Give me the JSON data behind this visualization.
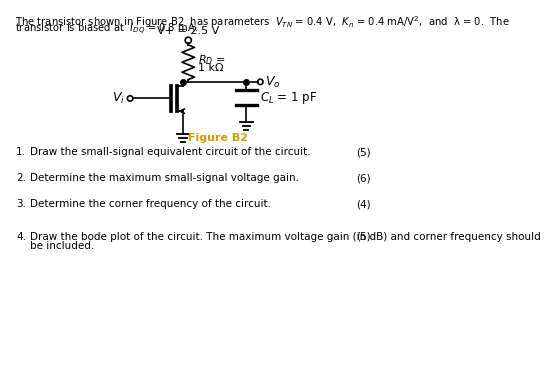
{
  "bg_color": "#ffffff",
  "text_color": "#000000",
  "line_color": "#000000",
  "fig_label": "Figure B2",
  "fig_label_color": "#c8a000",
  "vplus_label": "V+ = 2.5 V",
  "rd_label1": "$R_D$ =",
  "rd_label2": "1 kΩ",
  "vo_label": "$V_o$",
  "vi_label": "$V_i$",
  "cl_label": "$C_L$ = 1 pF",
  "header_line1": "The transistor shown in Figure B2  has parameters  $V_{TN}$ = 0.4 V,  $K_n$ = 0.4 mA/V$^2$,  and  λ = 0.  The",
  "header_line2": "transistor is biased at  $I_{DQ}$ = 0.8 mA.",
  "questions": [
    {
      "num": "1.",
      "text": "Draw the small-signal equivalent circuit of the circuit.",
      "marks": "(5)"
    },
    {
      "num": "2.",
      "text": "Determine the maximum small-signal voltage gain.",
      "marks": "(6)"
    },
    {
      "num": "3.",
      "text": "Determine the corner frequency of the circuit.",
      "marks": "(4)"
    },
    {
      "num": "4.",
      "text": "Draw the bode plot of the circuit. The maximum voltage gain (in dB) and corner frequency should",
      "text2": "be included.",
      "marks": "(5)"
    }
  ]
}
